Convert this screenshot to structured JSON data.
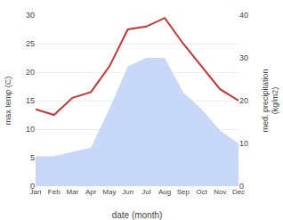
{
  "chart_data": {
    "type": "line",
    "categories": [
      "Jan",
      "Feb",
      "Mar",
      "Apr",
      "May",
      "Jun",
      "Jul",
      "Aug",
      "Sep",
      "Oct",
      "Nov",
      "Dec"
    ],
    "xlabel": "date (month)",
    "ylabel": "max temp (C)",
    "y2label": "med. precipitation\n(kg/m2)",
    "series": [
      {
        "type": "line",
        "color": "#cc3333",
        "values": [
          13.5,
          12.5,
          15.5,
          16.5,
          21.0,
          27.5,
          28.0,
          29.5,
          25.0,
          21.0,
          17.0,
          15.0
        ]
      },
      {
        "type": "area",
        "color": "#c8d8f8",
        "axis": "y2",
        "values": [
          7.0,
          7.0,
          8.0,
          9.0,
          18.0,
          28.0,
          30.0,
          30.0,
          22.0,
          18.0,
          13.0,
          10.0
        ]
      }
    ],
    "ylim": [
      0,
      30
    ],
    "yticks": [
      0,
      5,
      10,
      15,
      20,
      25,
      30
    ],
    "y2lim": [
      0,
      40
    ],
    "y2ticks": [
      0,
      10,
      20,
      30,
      40
    ],
    "grid": true
  }
}
